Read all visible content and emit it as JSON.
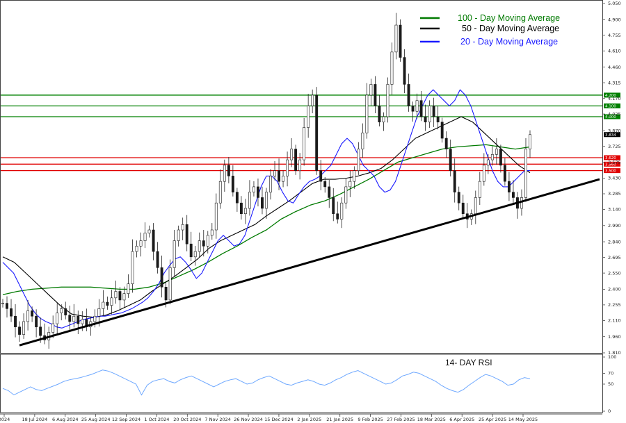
{
  "chart_data": {
    "type": "line",
    "y_ticks": [
      "5.050",
      "4.900",
      "4.755",
      "4.610",
      "4.460",
      "4.315",
      "4.170",
      "4.025",
      "3.870",
      "3.725",
      "3.575",
      "3.430",
      "3.285",
      "3.140",
      "2.990",
      "2.840",
      "2.695",
      "2.550",
      "2.400",
      "2.255",
      "2.110",
      "1.960",
      "1.810"
    ],
    "ylim": [
      1.81,
      5.05
    ],
    "x_ticks": [
      "2024",
      "18 Jul 2024",
      "6 Aug 2024",
      "25 Aug 2024",
      "12 Sep 2024",
      "1 Oct 2024",
      "20 Oct 2024",
      "7 Nov 2024",
      "26 Nov 2024",
      "15 Dec 2024",
      "2 Jan 2025",
      "21 Jan 2025",
      "9 Feb 2025",
      "27 Feb 2025",
      "18 Mar 2025",
      "6 Apr 2025",
      "25 Apr 2025",
      "14 May 2025"
    ],
    "legend": [
      {
        "name": "100 - Day Moving Average",
        "color": "#007a00"
      },
      {
        "name": "50 - Day Moving Average",
        "color": "#000000"
      },
      {
        "name": "20 - Day Moving Average",
        "color": "#1a1aff"
      }
    ],
    "horizontal_levels": [
      {
        "label": "4.200",
        "value": 4.2,
        "color": "#008000"
      },
      {
        "label": "4.100",
        "value": 4.1,
        "color": "#008000"
      },
      {
        "label": "4.000",
        "value": 4.0,
        "color": "#008000"
      },
      {
        "label": "3.620",
        "value": 3.62,
        "color": "#e00000"
      },
      {
        "label": "3.560",
        "value": 3.56,
        "color": "#e00000"
      },
      {
        "label": "3.500",
        "value": 3.5,
        "color": "#e00000"
      }
    ],
    "last_price_label": "3.834",
    "last_price": 3.834,
    "trendline": {
      "from": [
        0,
        1.88
      ],
      "to": [
        142,
        3.42
      ]
    },
    "close": [
      2.27,
      2.22,
      2.15,
      2.05,
      1.98,
      2.1,
      2.2,
      2.15,
      2.05,
      1.97,
      1.93,
      2.0,
      2.08,
      2.18,
      2.22,
      2.16,
      2.1,
      2.15,
      2.08,
      2.12,
      2.05,
      2.1,
      2.15,
      2.22,
      2.28,
      2.25,
      2.32,
      2.38,
      2.3,
      2.36,
      2.45,
      2.75,
      2.8,
      2.85,
      2.92,
      2.95,
      2.75,
      2.6,
      2.42,
      2.3,
      2.6,
      2.85,
      2.95,
      3.0,
      2.82,
      2.7,
      2.75,
      2.85,
      2.8,
      2.9,
      2.95,
      3.2,
      3.4,
      3.55,
      3.45,
      3.3,
      3.2,
      3.1,
      3.15,
      3.3,
      3.35,
      3.25,
      3.15,
      3.3,
      3.45,
      3.5,
      3.4,
      3.45,
      3.6,
      3.7,
      3.5,
      3.6,
      3.9,
      4.1,
      4.2,
      3.5,
      3.4,
      3.35,
      3.25,
      3.1,
      3.05,
      3.2,
      3.35,
      3.4,
      3.5,
      3.7,
      3.85,
      4.2,
      4.3,
      4.1,
      3.95,
      4.0,
      4.3,
      4.6,
      4.85,
      4.55,
      4.3,
      4.1,
      4.05,
      4.15,
      4.0,
      3.95,
      4.1,
      4.0,
      3.95,
      3.8,
      3.7,
      3.5,
      3.3,
      3.2,
      3.1,
      3.05,
      3.1,
      3.25,
      3.4,
      3.55,
      3.6,
      3.65,
      3.7,
      3.55,
      3.4,
      3.3,
      3.25,
      3.15,
      3.25,
      3.7,
      3.834
    ],
    "ma20": [
      2.65,
      2.6,
      2.55,
      2.45,
      2.35,
      2.25,
      2.18,
      2.13,
      2.1,
      2.08,
      2.05,
      2.04,
      2.06,
      2.08,
      2.1,
      2.12,
      2.13,
      2.14,
      2.15,
      2.15,
      2.16,
      2.17,
      2.18,
      2.2,
      2.22,
      2.25,
      2.28,
      2.32,
      2.38,
      2.45,
      2.55,
      2.62,
      2.68,
      2.7,
      2.65,
      2.58,
      2.5,
      2.55,
      2.65,
      2.75,
      2.85,
      2.9,
      2.85,
      2.8,
      2.82,
      2.9,
      3.05,
      3.2,
      3.35,
      3.45,
      3.45,
      3.4,
      3.3,
      3.22,
      3.2,
      3.28,
      3.35,
      3.4,
      3.42,
      3.45,
      3.5,
      3.55,
      3.65,
      3.75,
      3.8,
      3.75,
      3.65,
      3.55,
      3.5,
      3.45,
      3.35,
      3.3,
      3.32,
      3.4,
      3.55,
      3.7,
      3.85,
      4.0,
      4.1,
      4.2,
      4.25,
      4.2,
      4.15,
      4.1,
      4.15,
      4.25,
      4.2,
      4.1,
      3.95,
      3.8,
      3.65,
      3.5,
      3.4,
      3.35,
      3.35,
      3.4,
      3.45,
      3.5,
      3.5
    ],
    "ma50": [
      2.7,
      2.65,
      2.55,
      2.45,
      2.35,
      2.25,
      2.17,
      2.15,
      2.14,
      2.16,
      2.2,
      2.25,
      2.3,
      2.38,
      2.45,
      2.52,
      2.6,
      2.68,
      2.78,
      2.85,
      2.9,
      2.95,
      3.0,
      3.08,
      3.15,
      3.22,
      3.3,
      3.38,
      3.42,
      3.42,
      3.43,
      3.45,
      3.48,
      3.52,
      3.6,
      3.7,
      3.8,
      3.85,
      3.9,
      3.95,
      4.0,
      3.95,
      3.85,
      3.75,
      3.65,
      3.55,
      3.48
    ],
    "ma100": [
      2.35,
      2.38,
      2.4,
      2.41,
      2.42,
      2.42,
      2.42,
      2.41,
      2.4,
      2.4,
      2.42,
      2.46,
      2.52,
      2.58,
      2.65,
      2.73,
      2.8,
      2.88,
      2.95,
      3.05,
      3.12,
      3.18,
      3.22,
      3.28,
      3.35,
      3.42,
      3.5,
      3.58,
      3.62,
      3.66,
      3.7,
      3.72,
      3.73,
      3.74,
      3.72,
      3.7,
      3.72
    ],
    "rsi": {
      "title": "14- DAY RSI",
      "y_ticks": [
        "100",
        "70",
        "50",
        "0"
      ],
      "ylim": [
        0,
        100
      ],
      "values": [
        42,
        38,
        30,
        35,
        40,
        45,
        40,
        38,
        42,
        46,
        50,
        55,
        58,
        60,
        62,
        65,
        68,
        72,
        76,
        74,
        70,
        65,
        60,
        55,
        50,
        30,
        48,
        55,
        58,
        60,
        55,
        52,
        58,
        62,
        65,
        60,
        55,
        50,
        45,
        50,
        55,
        58,
        60,
        55,
        50,
        52,
        58,
        62,
        65,
        60,
        55,
        50,
        48,
        52,
        55,
        58,
        55,
        50,
        48,
        52,
        58,
        62,
        68,
        72,
        75,
        70,
        65,
        60,
        55,
        50,
        52,
        58,
        65,
        68,
        72,
        70,
        65,
        60,
        55,
        48,
        42,
        38,
        35,
        40,
        48,
        55,
        62,
        68,
        65,
        60,
        55,
        48,
        50,
        58,
        62,
        60
      ]
    }
  }
}
